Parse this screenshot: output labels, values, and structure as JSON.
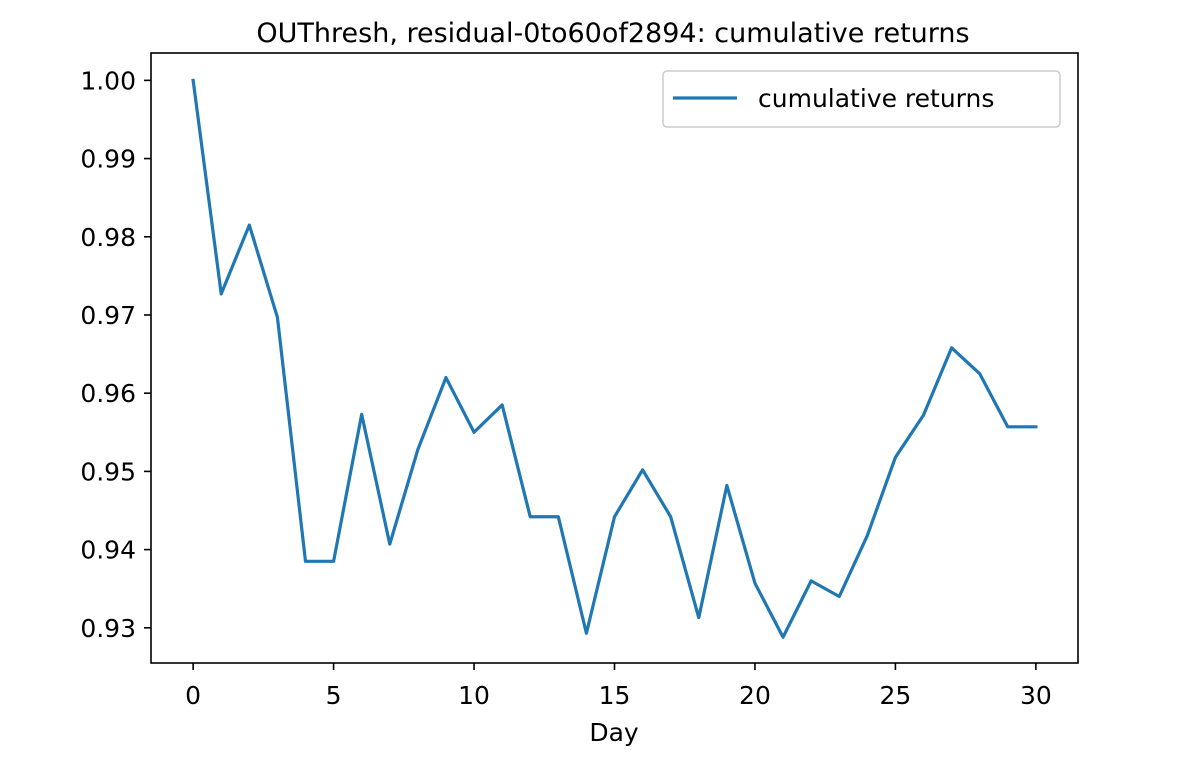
{
  "chart_data": {
    "type": "line",
    "title": "OUThresh, residual-0to60of2894: cumulative returns",
    "xlabel": "Day",
    "ylabel": "",
    "xlim": [
      -1.5,
      31.5
    ],
    "ylim": [
      0.9255,
      1.0035
    ],
    "xticks": [
      0,
      5,
      10,
      15,
      20,
      25,
      30
    ],
    "xtick_labels": [
      "0",
      "5",
      "10",
      "15",
      "20",
      "25",
      "30"
    ],
    "yticks": [
      0.93,
      0.94,
      0.95,
      0.96,
      0.97,
      0.98,
      0.99,
      1.0
    ],
    "ytick_labels": [
      "0.93",
      "0.94",
      "0.95",
      "0.96",
      "0.97",
      "0.98",
      "0.99",
      "1.00"
    ],
    "grid": false,
    "legend": {
      "position": "top-right"
    },
    "series": [
      {
        "name": "cumulative returns",
        "color": "#1f77b4",
        "x": [
          0,
          1,
          2,
          3,
          4,
          5,
          6,
          7,
          8,
          9,
          10,
          11,
          12,
          13,
          14,
          15,
          16,
          17,
          18,
          19,
          20,
          21,
          22,
          23,
          24,
          25,
          26,
          27,
          28,
          29,
          30
        ],
        "y": [
          1.0,
          0.9727,
          0.9815,
          0.9697,
          0.9385,
          0.9385,
          0.9573,
          0.9407,
          0.9528,
          0.962,
          0.955,
          0.9585,
          0.9442,
          0.9442,
          0.9293,
          0.9442,
          0.9502,
          0.9442,
          0.9313,
          0.9482,
          0.9357,
          0.9288,
          0.936,
          0.934,
          0.9418,
          0.9518,
          0.9572,
          0.9658,
          0.9625,
          0.9557,
          0.9557
        ]
      }
    ]
  }
}
